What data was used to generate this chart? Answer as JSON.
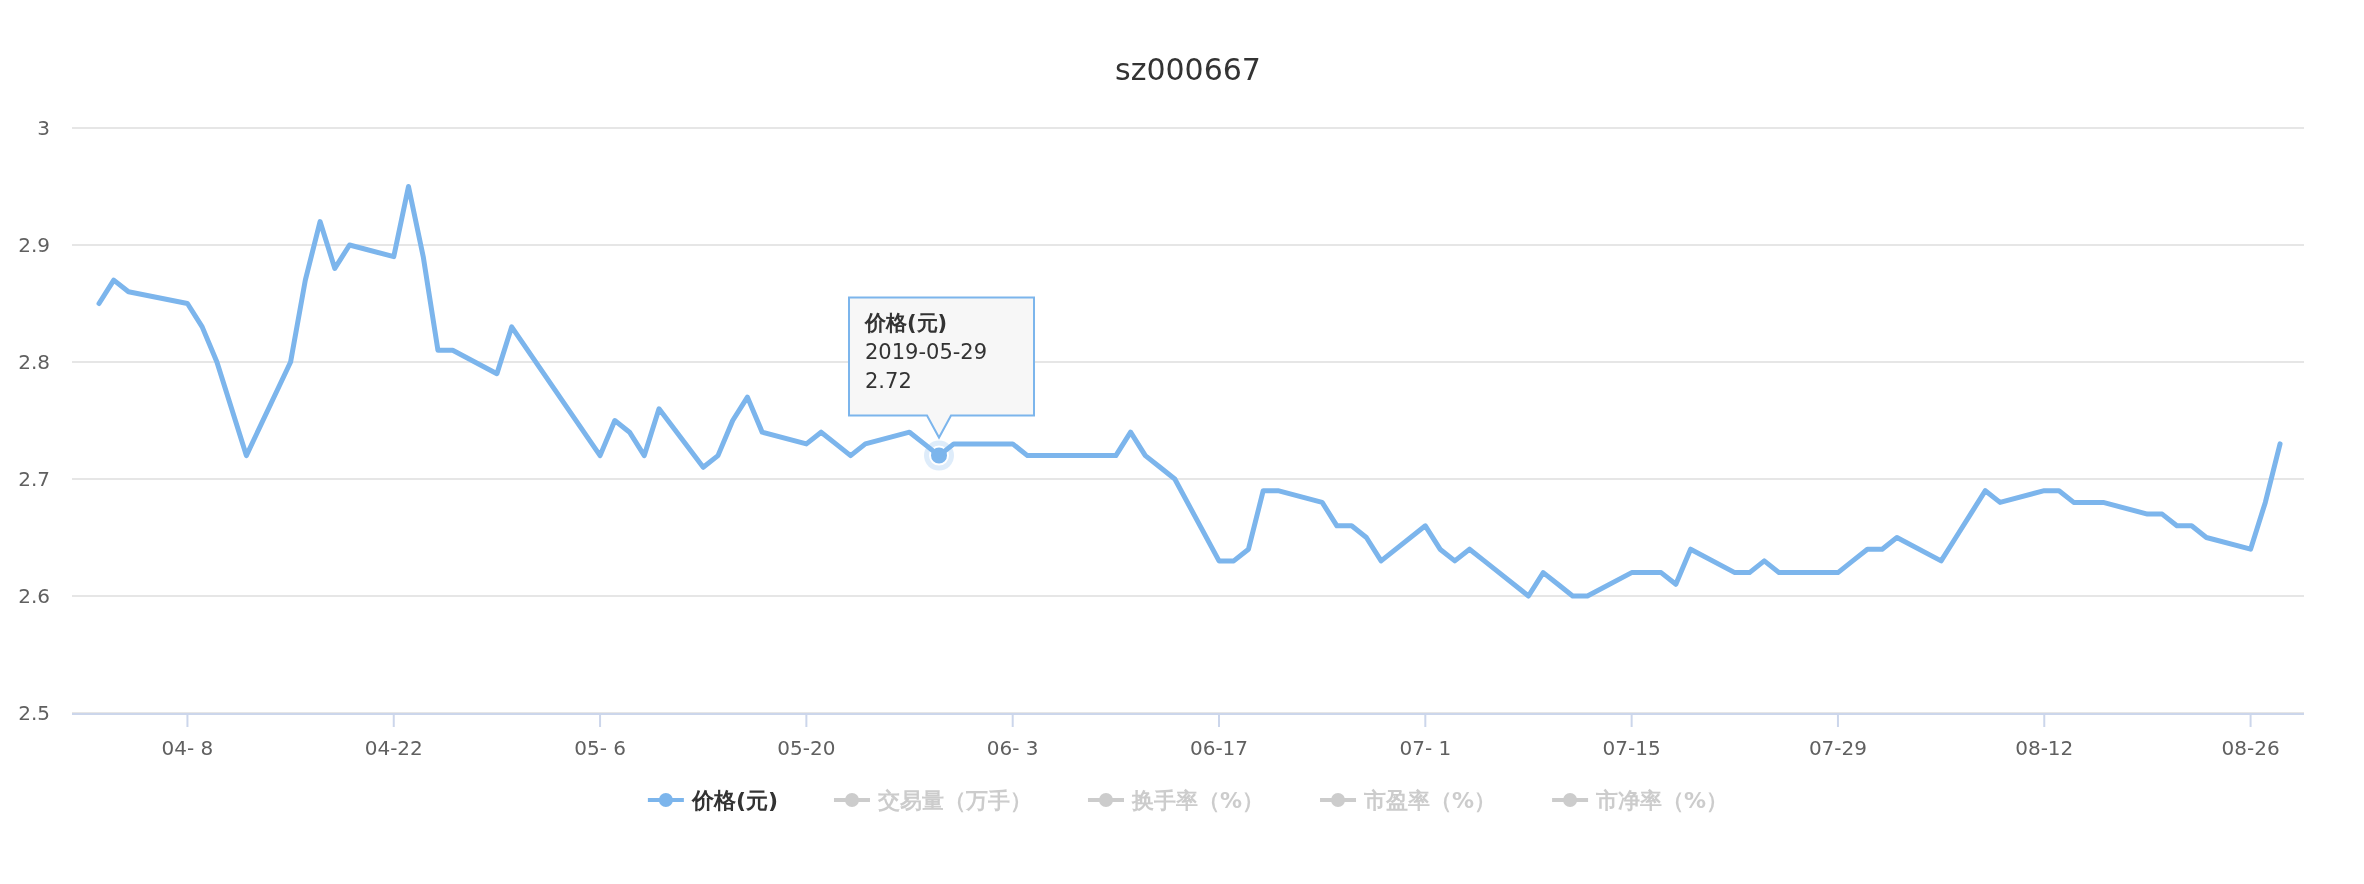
{
  "chart_data": {
    "type": "line",
    "title": "sz000667",
    "x": [
      "2019-04-02",
      "2019-04-03",
      "2019-04-04",
      "2019-04-08",
      "2019-04-09",
      "2019-04-10",
      "2019-04-11",
      "2019-04-12",
      "2019-04-15",
      "2019-04-16",
      "2019-04-17",
      "2019-04-18",
      "2019-04-19",
      "2019-04-22",
      "2019-04-23",
      "2019-04-24",
      "2019-04-25",
      "2019-04-26",
      "2019-04-29",
      "2019-04-30",
      "2019-05-06",
      "2019-05-07",
      "2019-05-08",
      "2019-05-09",
      "2019-05-10",
      "2019-05-13",
      "2019-05-14",
      "2019-05-15",
      "2019-05-16",
      "2019-05-17",
      "2019-05-20",
      "2019-05-21",
      "2019-05-22",
      "2019-05-23",
      "2019-05-24",
      "2019-05-27",
      "2019-05-28",
      "2019-05-29",
      "2019-05-30",
      "2019-05-31",
      "2019-06-03",
      "2019-06-04",
      "2019-06-05",
      "2019-06-06",
      "2019-06-10",
      "2019-06-11",
      "2019-06-12",
      "2019-06-13",
      "2019-06-14",
      "2019-06-17",
      "2019-06-18",
      "2019-06-19",
      "2019-06-20",
      "2019-06-21",
      "2019-06-24",
      "2019-06-25",
      "2019-06-26",
      "2019-06-27",
      "2019-06-28",
      "2019-07-01",
      "2019-07-02",
      "2019-07-03",
      "2019-07-04",
      "2019-07-05",
      "2019-07-08",
      "2019-07-09",
      "2019-07-10",
      "2019-07-11",
      "2019-07-12",
      "2019-07-15",
      "2019-07-16",
      "2019-07-17",
      "2019-07-18",
      "2019-07-19",
      "2019-07-22",
      "2019-07-23",
      "2019-07-24",
      "2019-07-25",
      "2019-07-26",
      "2019-07-29",
      "2019-07-30",
      "2019-07-31",
      "2019-08-01",
      "2019-08-02",
      "2019-08-05",
      "2019-08-06",
      "2019-08-07",
      "2019-08-08",
      "2019-08-09",
      "2019-08-12",
      "2019-08-13",
      "2019-08-14",
      "2019-08-15",
      "2019-08-16",
      "2019-08-19",
      "2019-08-20",
      "2019-08-21",
      "2019-08-22",
      "2019-08-23",
      "2019-08-26",
      "2019-08-27",
      "2019-08-28"
    ],
    "series": [
      {
        "name": "价格(元)",
        "color": "#7cb5ec",
        "values": [
          2.85,
          2.87,
          2.86,
          2.85,
          2.83,
          2.8,
          2.76,
          2.72,
          2.8,
          2.87,
          2.92,
          2.88,
          2.9,
          2.89,
          2.95,
          2.89,
          2.81,
          2.81,
          2.79,
          2.83,
          2.72,
          2.75,
          2.74,
          2.72,
          2.76,
          2.71,
          2.72,
          2.75,
          2.77,
          2.74,
          2.73,
          2.74,
          2.73,
          2.72,
          2.73,
          2.74,
          2.73,
          2.72,
          2.73,
          2.73,
          2.73,
          2.72,
          2.72,
          2.72,
          2.72,
          2.74,
          2.72,
          2.71,
          2.7,
          2.63,
          2.63,
          2.64,
          2.69,
          2.69,
          2.68,
          2.66,
          2.66,
          2.65,
          2.63,
          2.66,
          2.64,
          2.63,
          2.64,
          2.63,
          2.6,
          2.62,
          2.61,
          2.6,
          2.6,
          2.62,
          2.62,
          2.62,
          2.61,
          2.64,
          2.62,
          2.62,
          2.63,
          2.62,
          2.62,
          2.62,
          2.63,
          2.64,
          2.64,
          2.65,
          2.63,
          2.65,
          2.67,
          2.69,
          2.68,
          2.69,
          2.69,
          2.68,
          2.68,
          2.68,
          2.67,
          2.67,
          2.66,
          2.66,
          2.65,
          2.64,
          2.68,
          2.73
        ]
      },
      {
        "name": "交易量（万手）",
        "color": "#cccccc",
        "values": [
          null,
          null,
          null,
          null,
          null,
          null,
          null,
          null,
          null,
          null,
          null,
          null,
          null,
          null,
          null,
          null,
          null,
          null,
          null,
          null,
          null,
          null,
          null,
          null,
          null,
          null,
          null,
          null,
          null,
          null,
          null,
          null,
          null,
          null,
          null,
          null,
          null,
          null,
          null,
          null,
          null,
          null,
          null,
          null,
          null,
          null,
          null,
          null,
          null,
          null,
          null,
          null,
          null,
          null,
          null,
          null,
          null,
          null,
          null,
          null,
          null,
          null,
          null,
          null,
          null,
          null,
          null,
          null,
          null,
          null,
          null,
          null,
          null,
          null,
          null,
          null,
          null,
          null,
          null,
          null,
          null,
          null,
          null,
          null,
          null,
          null,
          null,
          null,
          null,
          null,
          null,
          null,
          null,
          null,
          null,
          null,
          null,
          null,
          null,
          null,
          null,
          null
        ]
      },
      {
        "name": "换手率（%）",
        "color": "#cccccc",
        "values": [
          null,
          null,
          null,
          null,
          null,
          null,
          null,
          null,
          null,
          null,
          null,
          null,
          null,
          null,
          null,
          null,
          null,
          null,
          null,
          null,
          null,
          null,
          null,
          null,
          null,
          null,
          null,
          null,
          null,
          null,
          null,
          null,
          null,
          null,
          null,
          null,
          null,
          null,
          null,
          null,
          null,
          null,
          null,
          null,
          null,
          null,
          null,
          null,
          null,
          null,
          null,
          null,
          null,
          null,
          null,
          null,
          null,
          null,
          null,
          null,
          null,
          null,
          null,
          null,
          null,
          null,
          null,
          null,
          null,
          null,
          null,
          null,
          null,
          null,
          null,
          null,
          null,
          null,
          null,
          null,
          null,
          null,
          null,
          null,
          null,
          null,
          null,
          null,
          null,
          null,
          null,
          null,
          null,
          null,
          null,
          null,
          null,
          null,
          null,
          null,
          null,
          null
        ]
      },
      {
        "name": "市盈率（%）",
        "color": "#cccccc",
        "values": [
          null,
          null,
          null,
          null,
          null,
          null,
          null,
          null,
          null,
          null,
          null,
          null,
          null,
          null,
          null,
          null,
          null,
          null,
          null,
          null,
          null,
          null,
          null,
          null,
          null,
          null,
          null,
          null,
          null,
          null,
          null,
          null,
          null,
          null,
          null,
          null,
          null,
          null,
          null,
          null,
          null,
          null,
          null,
          null,
          null,
          null,
          null,
          null,
          null,
          null,
          null,
          null,
          null,
          null,
          null,
          null,
          null,
          null,
          null,
          null,
          null,
          null,
          null,
          null,
          null,
          null,
          null,
          null,
          null,
          null,
          null,
          null,
          null,
          null,
          null,
          null,
          null,
          null,
          null,
          null,
          null,
          null,
          null,
          null,
          null,
          null,
          null,
          null,
          null,
          null,
          null,
          null,
          null,
          null,
          null,
          null,
          null,
          null,
          null,
          null,
          null,
          null
        ]
      },
      {
        "name": "市净率（%）",
        "color": "#cccccc",
        "values": [
          null,
          null,
          null,
          null,
          null,
          null,
          null,
          null,
          null,
          null,
          null,
          null,
          null,
          null,
          null,
          null,
          null,
          null,
          null,
          null,
          null,
          null,
          null,
          null,
          null,
          null,
          null,
          null,
          null,
          null,
          null,
          null,
          null,
          null,
          null,
          null,
          null,
          null,
          null,
          null,
          null,
          null,
          null,
          null,
          null,
          null,
          null,
          null,
          null,
          null,
          null,
          null,
          null,
          null,
          null,
          null,
          null,
          null,
          null,
          null,
          null,
          null,
          null,
          null,
          null,
          null,
          null,
          null,
          null,
          null,
          null,
          null,
          null,
          null,
          null,
          null,
          null,
          null,
          null,
          null,
          null,
          null,
          null,
          null,
          null,
          null,
          null,
          null,
          null,
          null,
          null,
          null,
          null,
          null,
          null,
          null,
          null,
          null,
          null,
          null,
          null,
          null
        ]
      }
    ],
    "xlim": [
      "2019-03-31T04:00",
      "2019-08-29T15:00"
    ],
    "xticks": [
      {
        "value": "2019-04-08",
        "label": "04- 8"
      },
      {
        "value": "2019-04-22",
        "label": "04-22"
      },
      {
        "value": "2019-05-06",
        "label": "05- 6"
      },
      {
        "value": "2019-05-20",
        "label": "05-20"
      },
      {
        "value": "2019-06-03",
        "label": "06- 3"
      },
      {
        "value": "2019-06-17",
        "label": "06-17"
      },
      {
        "value": "2019-07-01",
        "label": "07- 1"
      },
      {
        "value": "2019-07-15",
        "label": "07-15"
      },
      {
        "value": "2019-07-29",
        "label": "07-29"
      },
      {
        "value": "2019-08-12",
        "label": "08-12"
      },
      {
        "value": "2019-08-26",
        "label": "08-26"
      }
    ],
    "ylim": [
      2.5,
      3
    ],
    "yticks": [
      2.5,
      2.6,
      2.7,
      2.8,
      2.9,
      3
    ],
    "grid": "y",
    "legend": "bottom",
    "marker": "none",
    "line_style": "solid",
    "annotations": [
      {
        "text": "价格(元)\n2019-05-29\n2.72",
        "x": "2019-05-29",
        "y": 2.72
      }
    ]
  }
}
